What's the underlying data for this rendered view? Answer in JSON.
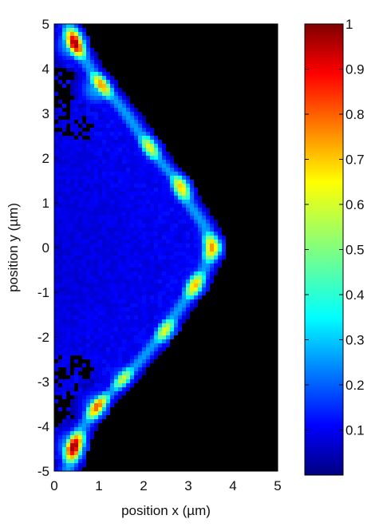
{
  "chart_data": {
    "type": "heatmap",
    "title": "",
    "xlabel": "position x (µm)",
    "ylabel": "position y (µm)",
    "xlim": [
      0,
      5
    ],
    "ylim": [
      -5,
      5
    ],
    "x_ticks": [
      "0",
      "1",
      "2",
      "3",
      "4",
      "5"
    ],
    "y_ticks": [
      "5",
      "4",
      "3",
      "2",
      "1",
      "0",
      "-1",
      "-2",
      "-3",
      "-4",
      "-5"
    ],
    "colormap": "jet",
    "background_color": "#000000",
    "colorbar": {
      "range": [
        0,
        1
      ],
      "ticks": [
        "0.1",
        "0.2",
        "0.3",
        "0.4",
        "0.5",
        "0.6",
        "0.7",
        "0.8",
        "0.9",
        "1"
      ]
    },
    "ridge_path": [
      {
        "y": 5.0,
        "x": 0.3
      },
      {
        "y": 4.5,
        "x": 0.5
      },
      {
        "y": 4.0,
        "x": 0.8
      },
      {
        "y": 3.5,
        "x": 1.2
      },
      {
        "y": 3.0,
        "x": 1.6
      },
      {
        "y": 2.5,
        "x": 1.95
      },
      {
        "y": 2.0,
        "x": 2.3
      },
      {
        "y": 1.5,
        "x": 2.75
      },
      {
        "y": 1.0,
        "x": 3.0
      },
      {
        "y": 0.5,
        "x": 3.35
      },
      {
        "y": 0.0,
        "x": 3.55
      },
      {
        "y": -0.5,
        "x": 3.35
      },
      {
        "y": -1.0,
        "x": 3.05
      },
      {
        "y": -1.5,
        "x": 2.7
      },
      {
        "y": -2.0,
        "x": 2.35
      },
      {
        "y": -2.5,
        "x": 1.95
      },
      {
        "y": -3.0,
        "x": 1.5
      },
      {
        "y": -3.5,
        "x": 1.0
      },
      {
        "y": -4.0,
        "x": 0.65
      },
      {
        "y": -4.5,
        "x": 0.42
      },
      {
        "y": -5.0,
        "x": 0.3
      }
    ],
    "hotspots": [
      {
        "x": 0.42,
        "y": 4.55,
        "value": 1.0
      },
      {
        "x": 0.95,
        "y": 3.55,
        "value": 0.85
      },
      {
        "x": 2.15,
        "y": 2.25,
        "value": 0.62
      },
      {
        "x": 2.85,
        "y": 1.35,
        "value": 0.68
      },
      {
        "x": 3.55,
        "y": 0.0,
        "value": 0.74
      },
      {
        "x": 3.15,
        "y": -0.85,
        "value": 0.7
      },
      {
        "x": 2.55,
        "y": -1.9,
        "value": 0.65
      },
      {
        "x": 1.5,
        "y": -2.9,
        "value": 0.6
      },
      {
        "x": 0.95,
        "y": -3.55,
        "value": 0.8
      },
      {
        "x": 0.42,
        "y": -4.45,
        "value": 1.0
      }
    ],
    "interior_value": 0.12
  }
}
